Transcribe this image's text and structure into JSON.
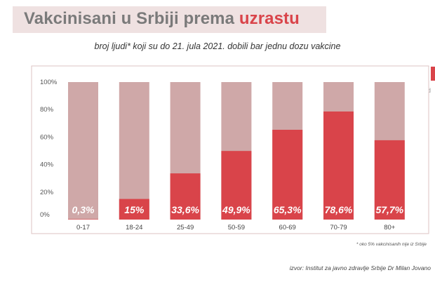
{
  "header": {
    "title_main": "Vakcinisani u Srbiji prema",
    "title_accent": "uzrastu",
    "subtitle": "broj ljudi* koji su do 21. jula 2021. dobili bar jednu dozu vakcine"
  },
  "footer": {
    "footnote": "* oko 5% vakcinisanih nije iz Srbije",
    "source": "izvor: Institut za javno zdravlje Srbije Dr Milan Jovano"
  },
  "side": {
    "glyph": "d"
  },
  "colors": {
    "vaccinated": "#d9444a",
    "total": "#cfa8a8",
    "title_gray": "#7a7a7a",
    "title_band": "#efe1e1"
  },
  "chart_data": {
    "type": "bar",
    "stacked": "100%",
    "categories": [
      "0-17",
      "18-24",
      "25-49",
      "50-59",
      "60-69",
      "70-79",
      "80+"
    ],
    "values": [
      0.3,
      15,
      33.6,
      49.9,
      65.3,
      78.6,
      57.7
    ],
    "value_labels": [
      "0,3%",
      "15%",
      "33,6%",
      "49,9%",
      "65,3%",
      "78,6%",
      "57,7%"
    ],
    "ylim": [
      0,
      100
    ],
    "yticks": [
      "0%",
      "20%",
      "40%",
      "60%",
      "80%",
      "100%"
    ],
    "grid": false,
    "legend": "none"
  }
}
